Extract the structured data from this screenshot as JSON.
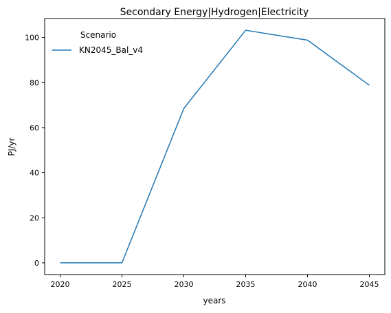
{
  "chart_data": {
    "type": "line",
    "title": "Secondary Energy|Hydrogen|Electricity",
    "xlabel": "years",
    "ylabel": "PJ/yr",
    "x": [
      2020,
      2025,
      2030,
      2035,
      2040,
      2045
    ],
    "series": [
      {
        "name": "KN2045_Bal_v4",
        "values": [
          0,
          0,
          68.5,
          103.2,
          98.8,
          78.8
        ],
        "color": "#1f77b4"
      }
    ],
    "xticks": [
      "2020",
      "2025",
      "2030",
      "2035",
      "2040",
      "2045"
    ],
    "yticks": [
      "0",
      "20",
      "40",
      "60",
      "80",
      "100"
    ],
    "xlim": [
      2018.75,
      2046.25
    ],
    "ylim": [
      -5.2,
      108.4
    ],
    "grid": false,
    "legend": {
      "title": "Scenario",
      "placement": "top-left"
    }
  }
}
